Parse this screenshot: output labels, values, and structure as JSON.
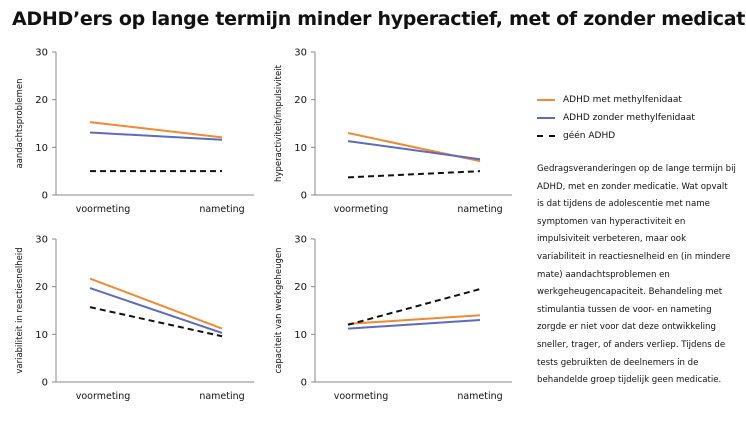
{
  "title": "ADHD’ers op lange termijn minder hyperactief, met of zonder medicatie",
  "legend": [
    {
      "name": "ADHD met methylfenidaat",
      "color": "#f08a33",
      "style": "solid"
    },
    {
      "name": "ADHD zonder methylfenidaat",
      "color": "#5b6bbf",
      "style": "solid"
    },
    {
      "name": "géén ADHD",
      "color": "#111111",
      "style": "dashed"
    }
  ],
  "description": "Gedragsveranderingen op de lange termijn bij ADHD, met en zonder medicatie. Wat opvalt is dat tijdens de adolescentie met name symptomen van hyperactiviteit en impulsiviteit verbeteren, maar ook variabiliteit in reactiesnelheid en (in mindere mate) aandachtsproblemen en werkgeheugencapaciteit. Behandeling met stimulantia tussen de voor- en nameting zorgde er niet voor dat deze ontwikkeling sneller, trager, of anders verliep. Tijdens de tests gebruikten de deelnemers in de behandelde groep tijdelijk geen medicatie.",
  "chart_data": [
    {
      "type": "line",
      "categories": [
        "voormeting",
        "nameting"
      ],
      "ylabel": "aandachtsproblemen",
      "ylim": [
        0,
        30
      ],
      "yticks": [
        0,
        10,
        20,
        30
      ],
      "series": [
        {
          "name": "ADHD met methylfenidaat",
          "values": [
            15.3,
            12.1
          ]
        },
        {
          "name": "ADHD zonder methylfenidaat",
          "values": [
            13.1,
            11.6
          ]
        },
        {
          "name": "géén ADHD",
          "values": [
            5.0,
            5.0
          ]
        }
      ]
    },
    {
      "type": "line",
      "categories": [
        "voormeting",
        "nameting"
      ],
      "ylabel": "hyperactiviteit/impulsiviteit",
      "ylim": [
        0,
        30
      ],
      "yticks": [
        0,
        10,
        20,
        30
      ],
      "series": [
        {
          "name": "ADHD met methylfenidaat",
          "values": [
            13.0,
            7.1
          ]
        },
        {
          "name": "ADHD zonder methylfenidaat",
          "values": [
            11.3,
            7.5
          ]
        },
        {
          "name": "géén ADHD",
          "values": [
            3.7,
            5.0
          ]
        }
      ]
    },
    {
      "type": "line",
      "categories": [
        "voormeting",
        "nameting"
      ],
      "ylabel": "variabiliteit in reactiesnelheid",
      "ylim": [
        0,
        30
      ],
      "yticks": [
        0,
        10,
        20,
        30
      ],
      "series": [
        {
          "name": "ADHD met methylfenidaat",
          "values": [
            21.7,
            11.2
          ]
        },
        {
          "name": "ADHD zonder methylfenidaat",
          "values": [
            19.7,
            10.3
          ]
        },
        {
          "name": "géén ADHD",
          "values": [
            15.7,
            9.6
          ]
        }
      ]
    },
    {
      "type": "line",
      "categories": [
        "voormeting",
        "nameting"
      ],
      "ylabel": "capaciteit van werkgeheugen",
      "ylim": [
        0,
        30
      ],
      "yticks": [
        0,
        10,
        20,
        30
      ],
      "series": [
        {
          "name": "ADHD met methylfenidaat",
          "values": [
            12.2,
            14.0
          ]
        },
        {
          "name": "ADHD zonder methylfenidaat",
          "values": [
            11.2,
            13.0
          ]
        },
        {
          "name": "géén ADHD",
          "values": [
            12.0,
            19.5
          ]
        }
      ]
    }
  ]
}
